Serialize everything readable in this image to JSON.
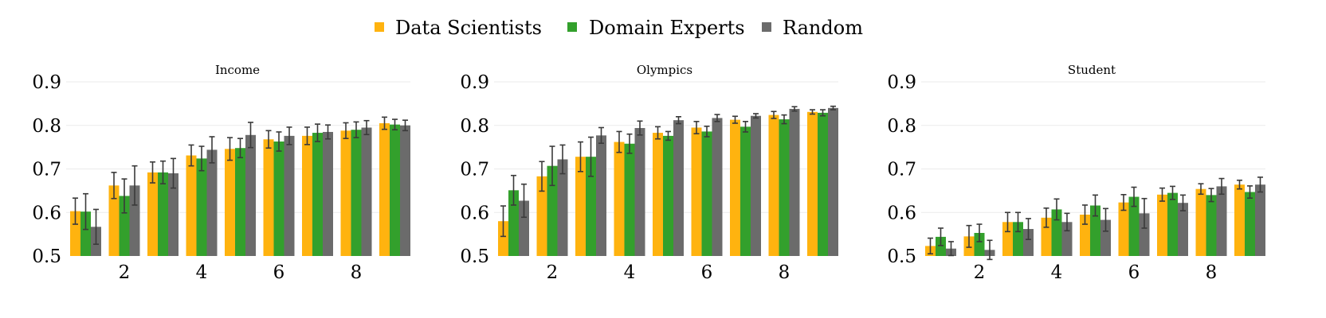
{
  "legend": [
    {
      "name": "Data Scientists",
      "color": "#FFB30F"
    },
    {
      "name": "Domain Experts",
      "color": "#33A02C"
    },
    {
      "name": "Random",
      "color": "#6B6B6B"
    }
  ],
  "chart_data": [
    {
      "type": "bar",
      "title": "Income",
      "xlabel": "",
      "ylabel": "",
      "x": [
        1,
        2,
        3,
        4,
        5,
        6,
        7,
        8,
        9
      ],
      "xticks": [
        2,
        4,
        6,
        8
      ],
      "yticks": [
        0.5,
        0.6,
        0.7,
        0.8,
        0.9
      ],
      "ylim": [
        0.5,
        0.9
      ],
      "grid": true,
      "series": [
        {
          "name": "Data Scientists",
          "values": [
            0.603,
            0.662,
            0.692,
            0.731,
            0.746,
            0.768,
            0.776,
            0.788,
            0.805
          ],
          "errors": [
            0.03,
            0.03,
            0.024,
            0.024,
            0.026,
            0.02,
            0.02,
            0.018,
            0.014
          ]
        },
        {
          "name": "Domain Experts",
          "values": [
            0.602,
            0.638,
            0.692,
            0.724,
            0.748,
            0.763,
            0.783,
            0.79,
            0.802
          ],
          "errors": [
            0.041,
            0.039,
            0.026,
            0.028,
            0.022,
            0.022,
            0.02,
            0.018,
            0.012
          ]
        },
        {
          "name": "Random",
          "values": [
            0.567,
            0.662,
            0.69,
            0.744,
            0.778,
            0.776,
            0.785,
            0.795,
            0.8
          ],
          "errors": [
            0.04,
            0.045,
            0.034,
            0.03,
            0.029,
            0.02,
            0.016,
            0.016,
            0.012
          ]
        }
      ]
    },
    {
      "type": "bar",
      "title": "Olympics",
      "xlabel": "",
      "ylabel": "",
      "x": [
        1,
        2,
        3,
        4,
        5,
        6,
        7,
        8,
        9
      ],
      "xticks": [
        2,
        4,
        6,
        8
      ],
      "yticks": [
        0.5,
        0.6,
        0.7,
        0.8,
        0.9
      ],
      "ylim": [
        0.5,
        0.9
      ],
      "grid": true,
      "series": [
        {
          "name": "Data Scientists",
          "values": [
            0.58,
            0.683,
            0.728,
            0.762,
            0.783,
            0.795,
            0.813,
            0.824,
            0.831
          ],
          "errors": [
            0.035,
            0.034,
            0.034,
            0.024,
            0.014,
            0.014,
            0.008,
            0.008,
            0.005
          ]
        },
        {
          "name": "Domain Experts",
          "values": [
            0.651,
            0.707,
            0.728,
            0.758,
            0.776,
            0.786,
            0.797,
            0.814,
            0.829
          ],
          "errors": [
            0.034,
            0.045,
            0.045,
            0.022,
            0.01,
            0.012,
            0.012,
            0.01,
            0.007
          ]
        },
        {
          "name": "Random",
          "values": [
            0.627,
            0.722,
            0.777,
            0.794,
            0.812,
            0.817,
            0.822,
            0.838,
            0.84
          ],
          "errors": [
            0.038,
            0.033,
            0.018,
            0.016,
            0.008,
            0.008,
            0.005,
            0.005,
            0.004
          ]
        }
      ]
    },
    {
      "type": "bar",
      "title": "Student",
      "xlabel": "",
      "ylabel": "",
      "x": [
        1,
        2,
        3,
        4,
        5,
        6,
        7,
        8,
        9
      ],
      "xticks": [
        2,
        4,
        6,
        8
      ],
      "yticks": [
        0.5,
        0.6,
        0.7,
        0.8,
        0.9
      ],
      "ylim": [
        0.5,
        0.9
      ],
      "grid": true,
      "series": [
        {
          "name": "Data Scientists",
          "values": [
            0.523,
            0.545,
            0.578,
            0.588,
            0.595,
            0.623,
            0.641,
            0.654,
            0.664
          ],
          "errors": [
            0.018,
            0.025,
            0.022,
            0.022,
            0.022,
            0.018,
            0.015,
            0.012,
            0.01
          ]
        },
        {
          "name": "Domain Experts",
          "values": [
            0.544,
            0.553,
            0.578,
            0.607,
            0.616,
            0.636,
            0.645,
            0.64,
            0.647
          ],
          "errors": [
            0.02,
            0.02,
            0.022,
            0.024,
            0.024,
            0.022,
            0.015,
            0.015,
            0.014
          ]
        },
        {
          "name": "Random",
          "values": [
            0.517,
            0.514,
            0.562,
            0.578,
            0.583,
            0.598,
            0.622,
            0.66,
            0.664
          ],
          "errors": [
            0.016,
            0.022,
            0.024,
            0.02,
            0.026,
            0.034,
            0.018,
            0.018,
            0.017
          ]
        }
      ]
    }
  ]
}
